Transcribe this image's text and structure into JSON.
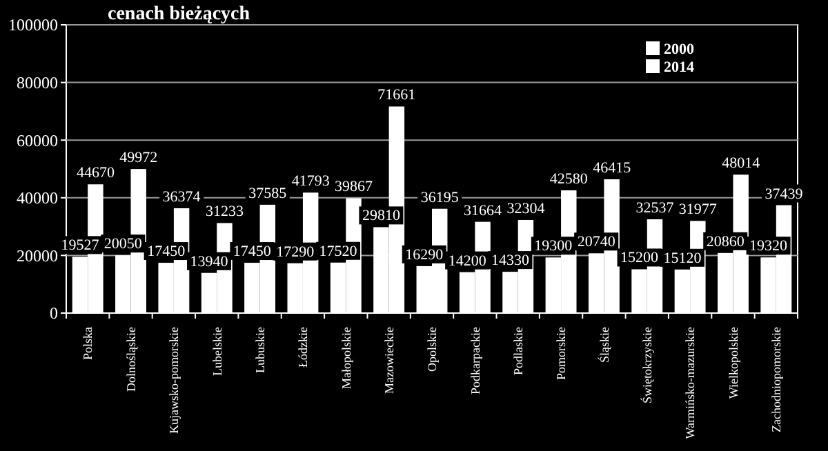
{
  "chart_data": {
    "type": "bar",
    "title": "cenach bieżących",
    "categories": [
      "Polska",
      "Dolnośląskie",
      "Kujawsko-pomorskie",
      "Lubelskie",
      "Lubuskie",
      "Łódzkie",
      "Małopolskie",
      "Mazowieckie",
      "Opolskie",
      "Podkarpackie",
      "Podlaskie",
      "Pomorskie",
      "Śląskie",
      "Świętokrzyskie",
      "Warmińsko-mazurskie",
      "Wielkopolskie",
      "Zachodniopomorskie"
    ],
    "series": [
      {
        "name": "2000",
        "color": "#ffffff",
        "values": [
          19527,
          20050,
          17450,
          13940,
          17450,
          17290,
          17520,
          29810,
          16290,
          14200,
          14330,
          19300,
          20740,
          15200,
          15120,
          20860,
          19320
        ]
      },
      {
        "name": "2014",
        "color": "#ffffff",
        "values": [
          44670,
          49972,
          36374,
          31233,
          37585,
          41793,
          39867,
          71661,
          36195,
          31664,
          32304,
          42580,
          46415,
          32537,
          31977,
          48014,
          37439
        ]
      }
    ],
    "ylim": [
      0,
      100000
    ],
    "yticks": [
      0,
      20000,
      40000,
      60000,
      80000,
      100000
    ],
    "grid": "y",
    "legend": "top right",
    "data_labels": true
  }
}
